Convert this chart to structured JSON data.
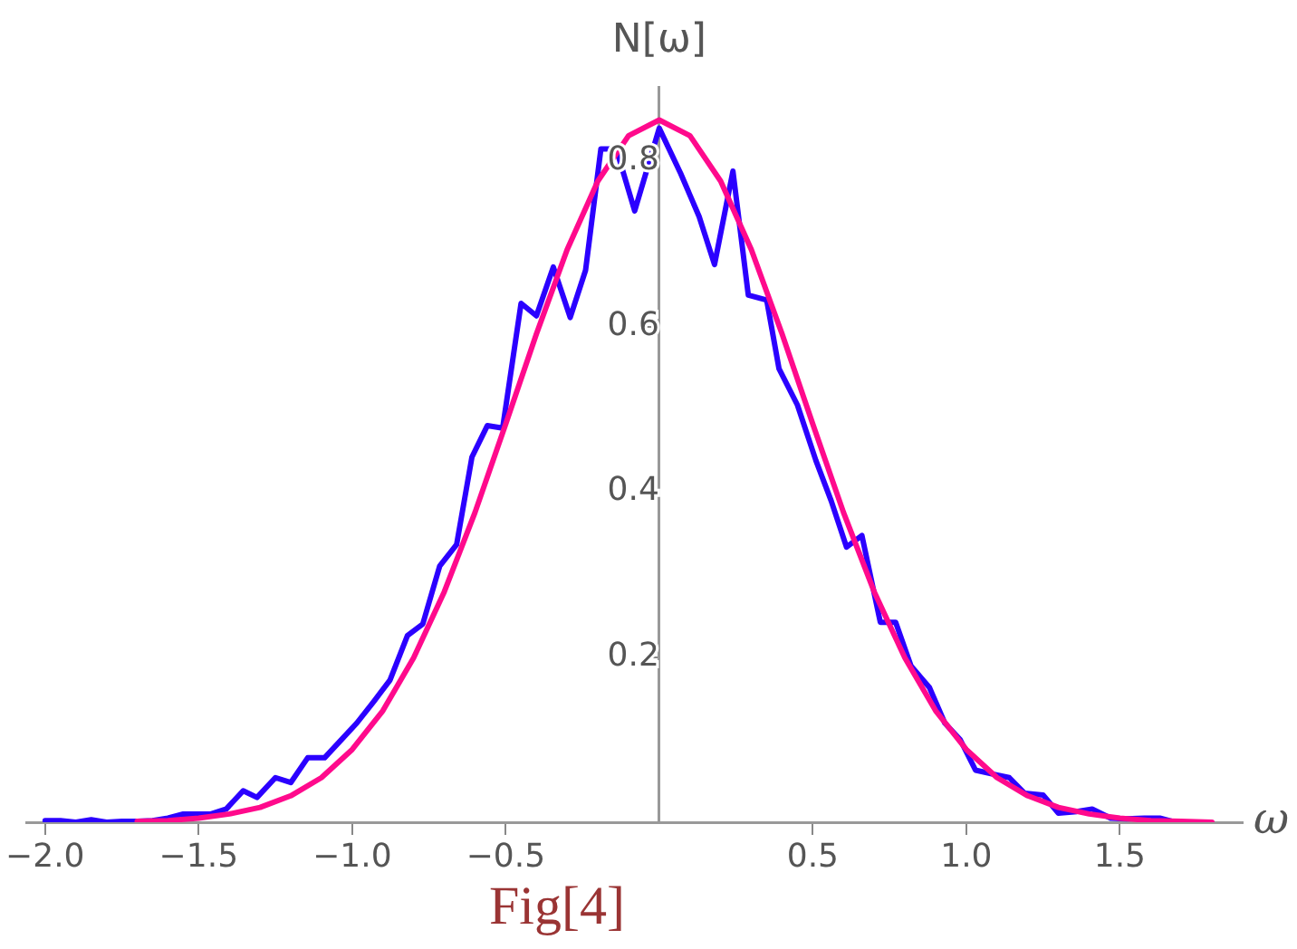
{
  "chart_data": {
    "type": "line",
    "xlabel": "ω",
    "ylabel": "N[ω]",
    "annotations": [
      "Fig[4]"
    ],
    "xlim": [
      -2.06,
      1.9
    ],
    "ylim": [
      0,
      0.89
    ],
    "xticks": [
      {
        "value": -2,
        "label": "−2.0"
      },
      {
        "value": -1.5,
        "label": "−1.5"
      },
      {
        "value": -1,
        "label": "−1.0"
      },
      {
        "value": -0.5,
        "label": "−0.5"
      },
      {
        "value": 0.5,
        "label": "0.5"
      },
      {
        "value": 1,
        "label": "1.0"
      },
      {
        "value": 1.5,
        "label": "1.5"
      }
    ],
    "yticks": [
      0.2,
      0.4,
      0.6,
      0.8
    ],
    "grid": false,
    "legend": false,
    "marker": "none",
    "line_style": "solid",
    "series": [
      {
        "color": "#2b00ff",
        "x": [
          -2.0,
          -1.95,
          -1.9,
          -1.85,
          -1.8,
          -1.75,
          -1.7,
          -1.65,
          -1.6,
          -1.55,
          -1.52,
          -1.46,
          -1.41,
          -1.355,
          -1.31,
          -1.25,
          -1.2,
          -1.145,
          -1.09,
          -1.04,
          -0.985,
          -0.93,
          -0.877,
          -0.82,
          -0.77,
          -0.715,
          -0.66,
          -0.61,
          -0.56,
          -0.51,
          -0.45,
          -0.4,
          -0.345,
          -0.29,
          -0.24,
          -0.19,
          -0.14,
          -0.08,
          0.0,
          0.07,
          0.13,
          0.18,
          0.24,
          0.29,
          0.35,
          0.39,
          0.45,
          0.51,
          0.56,
          0.61,
          0.66,
          0.72,
          0.77,
          0.82,
          0.88,
          0.93,
          0.98,
          1.03,
          1.09,
          1.14,
          1.19,
          1.25,
          1.3,
          1.36,
          1.41,
          1.47,
          1.52,
          1.58,
          1.63,
          1.68,
          1.73,
          1.79
        ],
        "values": [
          0.002,
          0.002,
          0.0,
          0.003,
          0.0,
          0.001,
          0.001,
          0.002,
          0.005,
          0.01,
          0.01,
          0.01,
          0.016,
          0.038,
          0.03,
          0.054,
          0.048,
          0.078,
          0.078,
          0.098,
          0.12,
          0.146,
          0.172,
          0.226,
          0.24,
          0.31,
          0.336,
          0.442,
          0.48,
          0.477,
          0.628,
          0.613,
          0.672,
          0.611,
          0.668,
          0.815,
          0.815,
          0.74,
          0.84,
          0.785,
          0.733,
          0.675,
          0.788,
          0.638,
          0.632,
          0.549,
          0.505,
          0.438,
          0.389,
          0.333,
          0.347,
          0.242,
          0.242,
          0.189,
          0.163,
          0.12,
          0.1,
          0.063,
          0.058,
          0.054,
          0.035,
          0.033,
          0.011,
          0.013,
          0.016,
          0.005,
          0.004,
          0.005,
          0.005,
          0.0,
          null,
          0.0
        ]
      },
      {
        "color": "#ff0a8c",
        "x": [
          -1.7,
          -1.6,
          -1.5,
          -1.4,
          -1.3,
          -1.2,
          -1.1,
          -1.0,
          -0.9,
          -0.8,
          -0.7,
          -0.6,
          -0.5,
          -0.4,
          -0.3,
          -0.2,
          -0.1,
          0.0,
          0.1,
          0.2,
          0.3,
          0.4,
          0.5,
          0.6,
          0.7,
          0.8,
          0.9,
          1.0,
          1.1,
          1.2,
          1.3,
          1.4,
          1.5,
          1.6,
          1.7,
          1.8
        ],
        "values": [
          0.001,
          0.002,
          0.005,
          0.01,
          0.018,
          0.032,
          0.054,
          0.088,
          0.135,
          0.199,
          0.279,
          0.375,
          0.482,
          0.591,
          0.693,
          0.776,
          0.831,
          0.85,
          0.831,
          0.776,
          0.693,
          0.591,
          0.482,
          0.375,
          0.279,
          0.199,
          0.135,
          0.088,
          0.054,
          0.032,
          0.018,
          0.01,
          0.005,
          0.002,
          0.001,
          0.0
        ]
      }
    ]
  }
}
